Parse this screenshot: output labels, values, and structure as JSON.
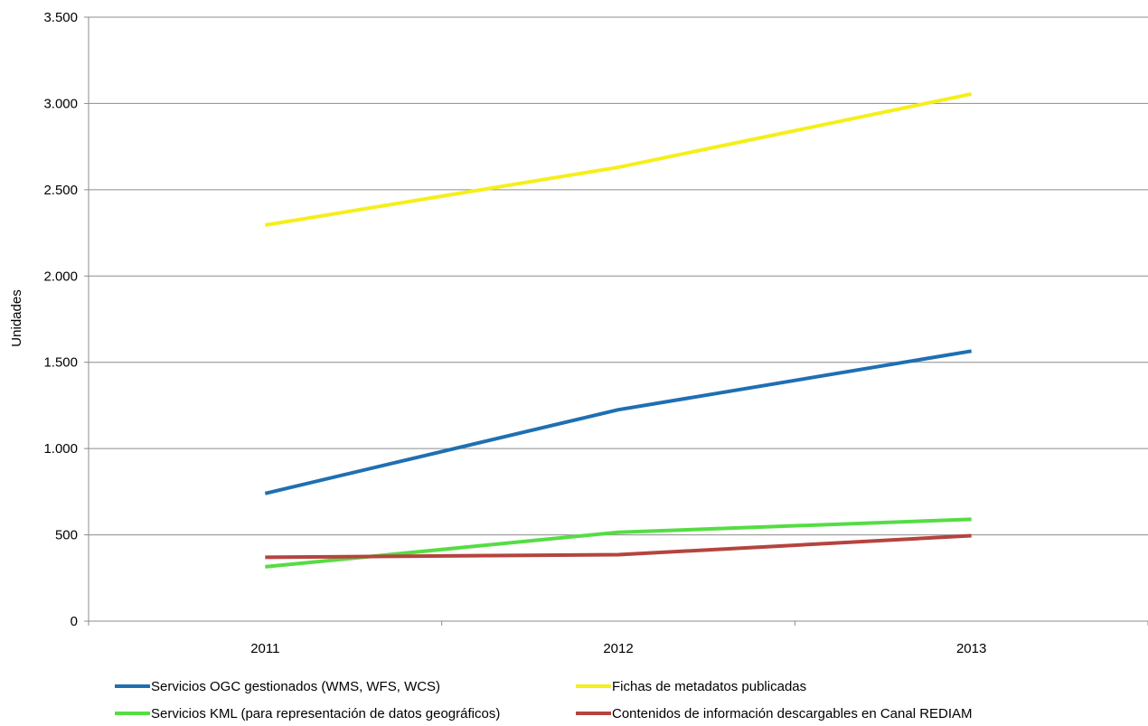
{
  "chart_data": {
    "type": "line",
    "title": "",
    "xlabel": "",
    "ylabel": "Unidades",
    "categories": [
      "2011",
      "2012",
      "2013"
    ],
    "ylim": [
      0,
      3500
    ],
    "yticks": [
      0,
      500,
      1000,
      1500,
      2000,
      2500,
      3000,
      3500
    ],
    "ytick_labels": [
      "0",
      "500",
      "1.000",
      "1.500",
      "2.000",
      "2.500",
      "3.000",
      "3.500"
    ],
    "grid": true,
    "legend_position": "bottom",
    "series": [
      {
        "name": "Servicios OGC gestionados (WMS, WFS, WCS)",
        "color": "#1f6fb2",
        "values": [
          740,
          1225,
          1565
        ]
      },
      {
        "name": "Fichas de metadatos publicadas",
        "color": "#f5ef1a",
        "values": [
          2295,
          2630,
          3055
        ]
      },
      {
        "name": "Servicios KML (para representación de datos geográficos)",
        "color": "#55dd44",
        "values": [
          315,
          515,
          590
        ]
      },
      {
        "name": "Contenidos de información descargables en Canal REDIAM",
        "color": "#b5443e",
        "values": [
          370,
          385,
          495
        ]
      }
    ]
  }
}
